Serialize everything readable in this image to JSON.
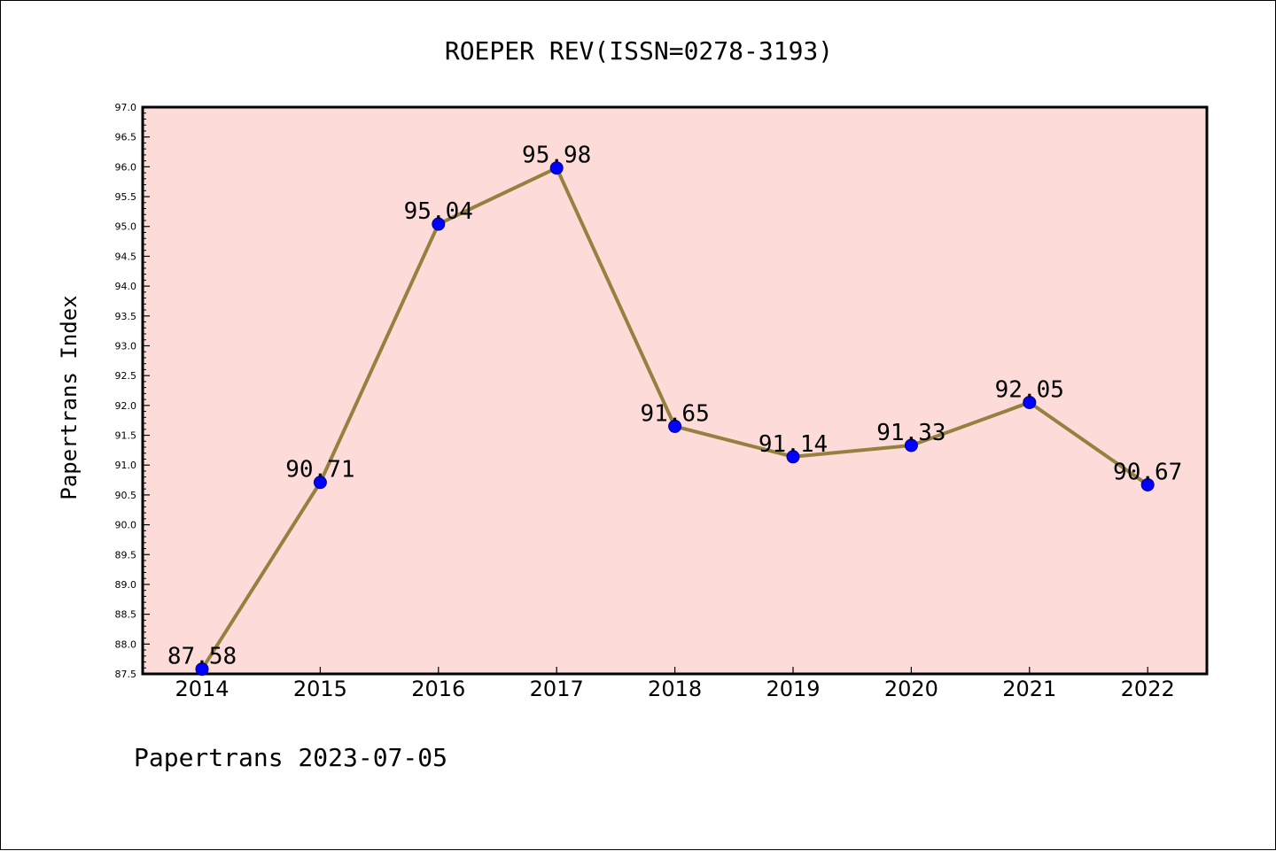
{
  "chart_data": {
    "type": "line",
    "title": "ROEPER REV(ISSN=0278-3193)",
    "xlabel": "",
    "ylabel": "Papertrans Index",
    "footer": "Papertrans 2023-07-05",
    "categories": [
      "2014",
      "2015",
      "2016",
      "2017",
      "2018",
      "2019",
      "2020",
      "2021",
      "2022"
    ],
    "series": [
      {
        "values": [
          87.58,
          90.71,
          95.04,
          95.98,
          91.65,
          91.14,
          91.33,
          92.05,
          90.67
        ],
        "labels": [
          "87.58",
          "90.71",
          "95.04",
          "95.98",
          "91.65",
          "91.14",
          "91.33",
          "92.05",
          "90.67"
        ]
      }
    ],
    "ylim": [
      87.5,
      97.0
    ],
    "yticks": [
      "87.5",
      "88.0",
      "88.5",
      "89.0",
      "89.5",
      "90.0",
      "90.5",
      "91.0",
      "91.5",
      "92.0",
      "92.5",
      "93.0",
      "93.5",
      "94.0",
      "94.5",
      "95.0",
      "95.5",
      "96.0",
      "96.5",
      "97.0"
    ],
    "grid": false,
    "colors": {
      "plot_background": "#fddbd8",
      "line": "#948140",
      "marker": "#0000ff"
    }
  }
}
